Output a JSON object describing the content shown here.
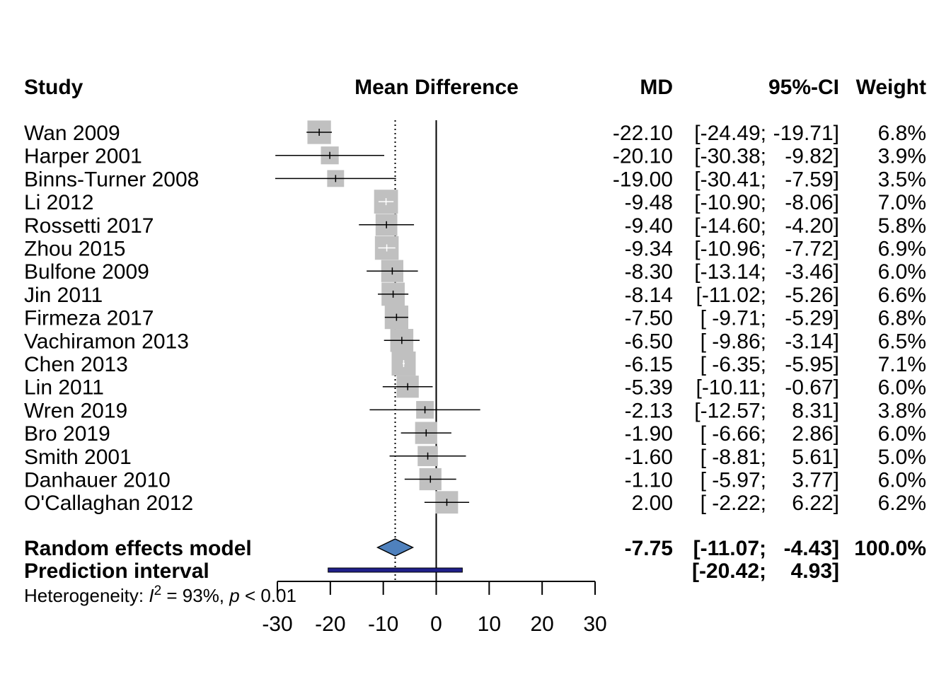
{
  "chart_data": {
    "type": "forest",
    "headers": {
      "study": "Study",
      "effect": "Mean Difference",
      "md": "MD",
      "ci": "95%-CI",
      "weight": "Weight"
    },
    "studies": [
      {
        "name": "Wan 2009",
        "md": -22.1,
        "lower": -24.49,
        "upper": -19.71,
        "weight": 6.8,
        "md_text": "-22.10",
        "ci_lo_text": "[-24.49;",
        "ci_hi_text": "-19.71]",
        "weight_text": "6.8%"
      },
      {
        "name": "Harper 2001",
        "md": -20.1,
        "lower": -30.38,
        "upper": -9.82,
        "weight": 3.9,
        "md_text": "-20.10",
        "ci_lo_text": "[-30.38;",
        "ci_hi_text": "-9.82]",
        "weight_text": "3.9%"
      },
      {
        "name": "Binns-Turner 2008",
        "md": -19.0,
        "lower": -30.41,
        "upper": -7.59,
        "weight": 3.5,
        "md_text": "-19.00",
        "ci_lo_text": "[-30.41;",
        "ci_hi_text": "-7.59]",
        "weight_text": "3.5%"
      },
      {
        "name": "Li 2012",
        "md": -9.48,
        "lower": -10.9,
        "upper": -8.06,
        "weight": 7.0,
        "md_text": "-9.48",
        "ci_lo_text": "[-10.90;",
        "ci_hi_text": "-8.06]",
        "weight_text": "7.0%"
      },
      {
        "name": "Rossetti 2017",
        "md": -9.4,
        "lower": -14.6,
        "upper": -4.2,
        "weight": 5.8,
        "md_text": "-9.40",
        "ci_lo_text": "[-14.60;",
        "ci_hi_text": "-4.20]",
        "weight_text": "5.8%"
      },
      {
        "name": "Zhou 2015",
        "md": -9.34,
        "lower": -10.96,
        "upper": -7.72,
        "weight": 6.9,
        "md_text": "-9.34",
        "ci_lo_text": "[-10.96;",
        "ci_hi_text": "-7.72]",
        "weight_text": "6.9%"
      },
      {
        "name": "Bulfone 2009",
        "md": -8.3,
        "lower": -13.14,
        "upper": -3.46,
        "weight": 6.0,
        "md_text": "-8.30",
        "ci_lo_text": "[-13.14;",
        "ci_hi_text": "-3.46]",
        "weight_text": "6.0%"
      },
      {
        "name": "Jin 2011",
        "md": -8.14,
        "lower": -11.02,
        "upper": -5.26,
        "weight": 6.6,
        "md_text": "-8.14",
        "ci_lo_text": "[-11.02;",
        "ci_hi_text": "-5.26]",
        "weight_text": "6.6%"
      },
      {
        "name": "Firmeza 2017",
        "md": -7.5,
        "lower": -9.71,
        "upper": -5.29,
        "weight": 6.8,
        "md_text": "-7.50",
        "ci_lo_text": "[ -9.71;",
        "ci_hi_text": "-5.29]",
        "weight_text": "6.8%"
      },
      {
        "name": "Vachiramon 2013",
        "md": -6.5,
        "lower": -9.86,
        "upper": -3.14,
        "weight": 6.5,
        "md_text": "-6.50",
        "ci_lo_text": "[ -9.86;",
        "ci_hi_text": "-3.14]",
        "weight_text": "6.5%"
      },
      {
        "name": "Chen 2013",
        "md": -6.15,
        "lower": -6.35,
        "upper": -5.95,
        "weight": 7.1,
        "md_text": "-6.15",
        "ci_lo_text": "[ -6.35;",
        "ci_hi_text": "-5.95]",
        "weight_text": "7.1%"
      },
      {
        "name": "Lin 2011",
        "md": -5.39,
        "lower": -10.11,
        "upper": -0.67,
        "weight": 6.0,
        "md_text": "-5.39",
        "ci_lo_text": "[-10.11;",
        "ci_hi_text": "-0.67]",
        "weight_text": "6.0%"
      },
      {
        "name": "Wren 2019",
        "md": -2.13,
        "lower": -12.57,
        "upper": 8.31,
        "weight": 3.8,
        "md_text": "-2.13",
        "ci_lo_text": "[-12.57;",
        "ci_hi_text": "8.31]",
        "weight_text": "3.8%"
      },
      {
        "name": "Bro 2019",
        "md": -1.9,
        "lower": -6.66,
        "upper": 2.86,
        "weight": 6.0,
        "md_text": "-1.90",
        "ci_lo_text": "[ -6.66;",
        "ci_hi_text": "2.86]",
        "weight_text": "6.0%"
      },
      {
        "name": "Smith 2001",
        "md": -1.6,
        "lower": -8.81,
        "upper": 5.61,
        "weight": 5.0,
        "md_text": "-1.60",
        "ci_lo_text": "[ -8.81;",
        "ci_hi_text": "5.61]",
        "weight_text": "5.0%"
      },
      {
        "name": "Danhauer 2010",
        "md": -1.1,
        "lower": -5.97,
        "upper": 3.77,
        "weight": 6.0,
        "md_text": "-1.10",
        "ci_lo_text": "[ -5.97;",
        "ci_hi_text": "3.77]",
        "weight_text": "6.0%"
      },
      {
        "name": "O'Callaghan 2012",
        "md": 2.0,
        "lower": -2.22,
        "upper": 6.22,
        "weight": 6.2,
        "md_text": "2.00",
        "ci_lo_text": "[ -2.22;",
        "ci_hi_text": "6.22]",
        "weight_text": "6.2%"
      }
    ],
    "pooled": {
      "label": "Random effects model",
      "md": -7.75,
      "lower": -11.07,
      "upper": -4.43,
      "md_text": "-7.75",
      "ci_lo_text": "[-11.07;",
      "ci_hi_text": "-4.43]",
      "weight_text": "100.0%"
    },
    "prediction": {
      "label": "Prediction interval",
      "lower": -20.42,
      "upper": 4.93,
      "ci_lo_text": "[-20.42;",
      "ci_hi_text": "4.93]"
    },
    "heterogeneity": {
      "prefix": "Heterogeneity: ",
      "stat": "I",
      "sup": "2",
      "value": " = 93%, ",
      "p": "p",
      "p_value": " < 0.01"
    },
    "x_axis": {
      "ticks": [
        -30,
        -20,
        -10,
        0,
        10,
        20,
        30
      ],
      "tick_labels": [
        "-30",
        "-20",
        "-10",
        "0",
        "10",
        "20",
        "30"
      ],
      "xlim": [
        -30,
        30
      ]
    },
    "colors": {
      "study_square": "#c0c0c0",
      "diamond_fill": "#4f81bd",
      "prediction_bar": "#1f1f8a",
      "lines": "#000000"
    }
  }
}
